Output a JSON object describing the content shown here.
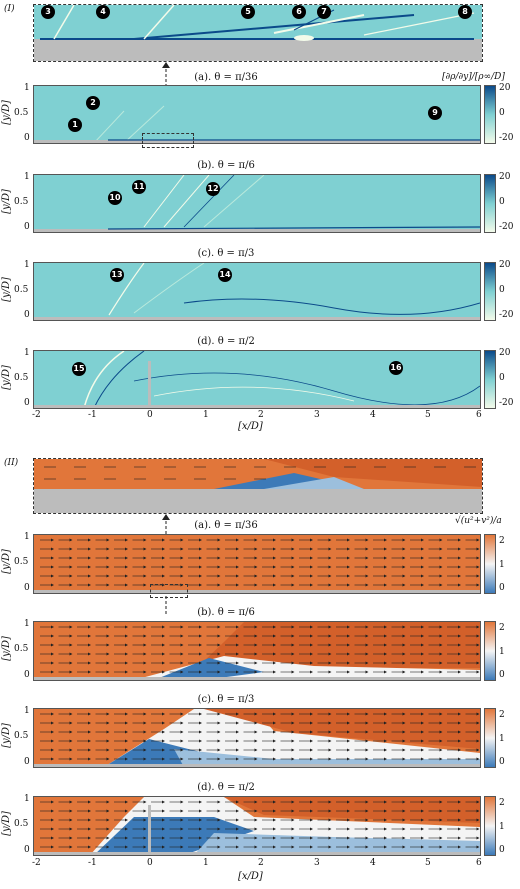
{
  "figure": {
    "part_labels": [
      "(I)",
      "(II)"
    ],
    "panel_titles": [
      "(a). θ = π/36",
      "(b). θ = π/6",
      "(c). θ = π/3",
      "(d). θ = π/2"
    ],
    "y_axis_label": "[y/D]",
    "x_axis_label": "[x/D]",
    "y_ticks": [
      "1",
      "0.5",
      "0"
    ],
    "x_ticks": [
      "-2",
      "-1",
      "0",
      "1",
      "2",
      "3",
      "4",
      "5",
      "6"
    ],
    "section1": {
      "colorbar_title": "[∂ρ/∂y]/[ρ∞/D]",
      "colorbar_ticks": [
        "20",
        "0",
        "-20"
      ],
      "colorbar_colors": [
        "#0b4a8a",
        "#7fd0d2",
        "#f3fbea"
      ],
      "callouts": [
        "1",
        "2",
        "3",
        "4",
        "5",
        "6",
        "7",
        "8",
        "9",
        "10",
        "11",
        "12",
        "13",
        "14",
        "15",
        "16"
      ]
    },
    "section2": {
      "colorbar_title": "√(u²+v²)/a",
      "colorbar_ticks": [
        "2",
        "1",
        "0"
      ],
      "colorbar_colors": [
        "#e1763a",
        "#f4f4f4",
        "#3c7ab8"
      ]
    }
  }
}
